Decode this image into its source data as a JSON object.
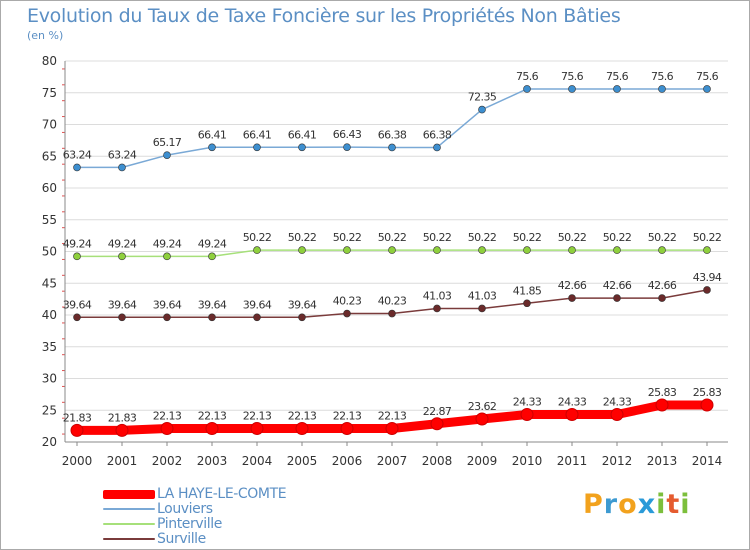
{
  "title": "Evolution du Taux de Taxe Foncière sur les Propriétés Non Bâties",
  "unit": "(en %)",
  "logo": {
    "letters": [
      "P",
      "r",
      "o",
      "x",
      "i",
      "t",
      "i"
    ],
    "colors": [
      "#f2a21d",
      "#3d9ad1",
      "#f2a21d",
      "#2a9ad8",
      "#7cbf3c",
      "#e55b2f",
      "#7cbf3c"
    ]
  },
  "chart_data": {
    "type": "line",
    "x": [
      "2000",
      "2001",
      "2002",
      "2003",
      "2004",
      "2005",
      "2006",
      "2007",
      "2008",
      "2009",
      "2010",
      "2011",
      "2012",
      "2013",
      "2014"
    ],
    "ylim": [
      20,
      80
    ],
    "yticks": [
      "20",
      "25",
      "30",
      "35",
      "40",
      "45",
      "50",
      "55",
      "60",
      "65",
      "70",
      "75",
      "80"
    ],
    "grid": "horizontal",
    "legend_position": "bottom-left",
    "series": [
      {
        "name": "LA HAYE-LE-COMTE",
        "color": "#ff0000",
        "values": [
          21.83,
          21.83,
          22.13,
          22.13,
          22.13,
          22.13,
          22.13,
          22.13,
          22.87,
          23.62,
          24.33,
          24.33,
          24.33,
          25.83,
          25.83
        ],
        "labels": [
          "21.83",
          "21.83",
          "22.13",
          "22.13",
          "22.13",
          "22.13",
          "22.13",
          "22.13",
          "22.87",
          "23.62",
          "24.33",
          "24.33",
          "24.33",
          "25.83",
          "25.83"
        ]
      },
      {
        "name": "Louviers",
        "color": "#7aa9d6",
        "point_color": "#3d8fd0",
        "values": [
          63.24,
          63.24,
          65.17,
          66.41,
          66.41,
          66.41,
          66.43,
          66.38,
          66.38,
          72.35,
          75.6,
          75.6,
          75.6,
          75.6,
          75.6
        ],
        "labels": [
          "63.24",
          "63.24",
          "65.17",
          "66.41",
          "66.41",
          "66.41",
          "66.43",
          "66.38",
          "66.38",
          "72.35",
          "75.6",
          "75.6",
          "75.6",
          "75.6",
          "75.6"
        ]
      },
      {
        "name": "Pinterville",
        "color": "#a6e07a",
        "point_color": "#8fd03d",
        "values": [
          49.24,
          49.24,
          49.24,
          49.24,
          50.22,
          50.22,
          50.22,
          50.22,
          50.22,
          50.22,
          50.22,
          50.22,
          50.22,
          50.22,
          50.22
        ],
        "labels": [
          "49.24",
          "49.24",
          "49.24",
          "49.24",
          "50.22",
          "50.22",
          "50.22",
          "50.22",
          "50.22",
          "50.22",
          "50.22",
          "50.22",
          "50.22",
          "50.22",
          "50.22"
        ]
      },
      {
        "name": "Surville",
        "color": "#7a3b3b",
        "point_color": "#6a2a2a",
        "values": [
          39.64,
          39.64,
          39.64,
          39.64,
          39.64,
          39.64,
          40.23,
          40.23,
          41.03,
          41.03,
          41.85,
          42.66,
          42.66,
          42.66,
          43.94
        ],
        "labels": [
          "39.64",
          "39.64",
          "39.64",
          "39.64",
          "39.64",
          "39.64",
          "40.23",
          "40.23",
          "41.03",
          "41.03",
          "41.85",
          "42.66",
          "42.66",
          "42.66",
          "43.94"
        ]
      }
    ]
  }
}
